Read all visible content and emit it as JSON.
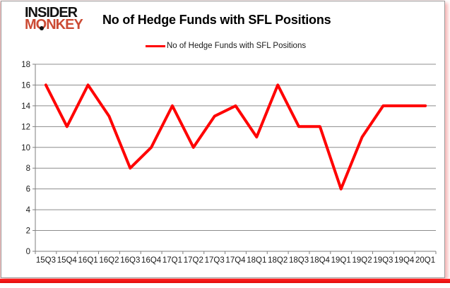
{
  "logo": {
    "line1": "INSIDER",
    "line2": "MONKEY",
    "accent_color": "#cb4a33"
  },
  "header": {
    "title": "No of Hedge Funds with SFL Positions"
  },
  "legend": {
    "label": "No of Hedge Funds with SFL Positions",
    "line_color": "#ff0000"
  },
  "chart_data": {
    "type": "line",
    "title": "No of Hedge Funds with SFL Positions",
    "categories": [
      "15Q3",
      "15Q4",
      "16Q1",
      "16Q2",
      "16Q3",
      "16Q4",
      "17Q1",
      "17Q2",
      "17Q3",
      "17Q4",
      "18Q1",
      "18Q2",
      "18Q3",
      "18Q4",
      "19Q1",
      "19Q2",
      "19Q3",
      "19Q4",
      "20Q1"
    ],
    "series": [
      {
        "name": "No of Hedge Funds with SFL Positions",
        "color": "#ff0000",
        "values": [
          16,
          12,
          16,
          13,
          8,
          10,
          14,
          10,
          13,
          14,
          11,
          16,
          12,
          12,
          6,
          11,
          14,
          14,
          14
        ]
      }
    ],
    "xlabel": "",
    "ylabel": "",
    "ylim": [
      0,
      18
    ],
    "ytick_step": 2,
    "grid": true,
    "legend_position": "top",
    "axis_color": "#7f7f7f",
    "grid_color": "#8c8c8c",
    "tick_label_color": "#1a1a1a",
    "line_width": 4
  }
}
